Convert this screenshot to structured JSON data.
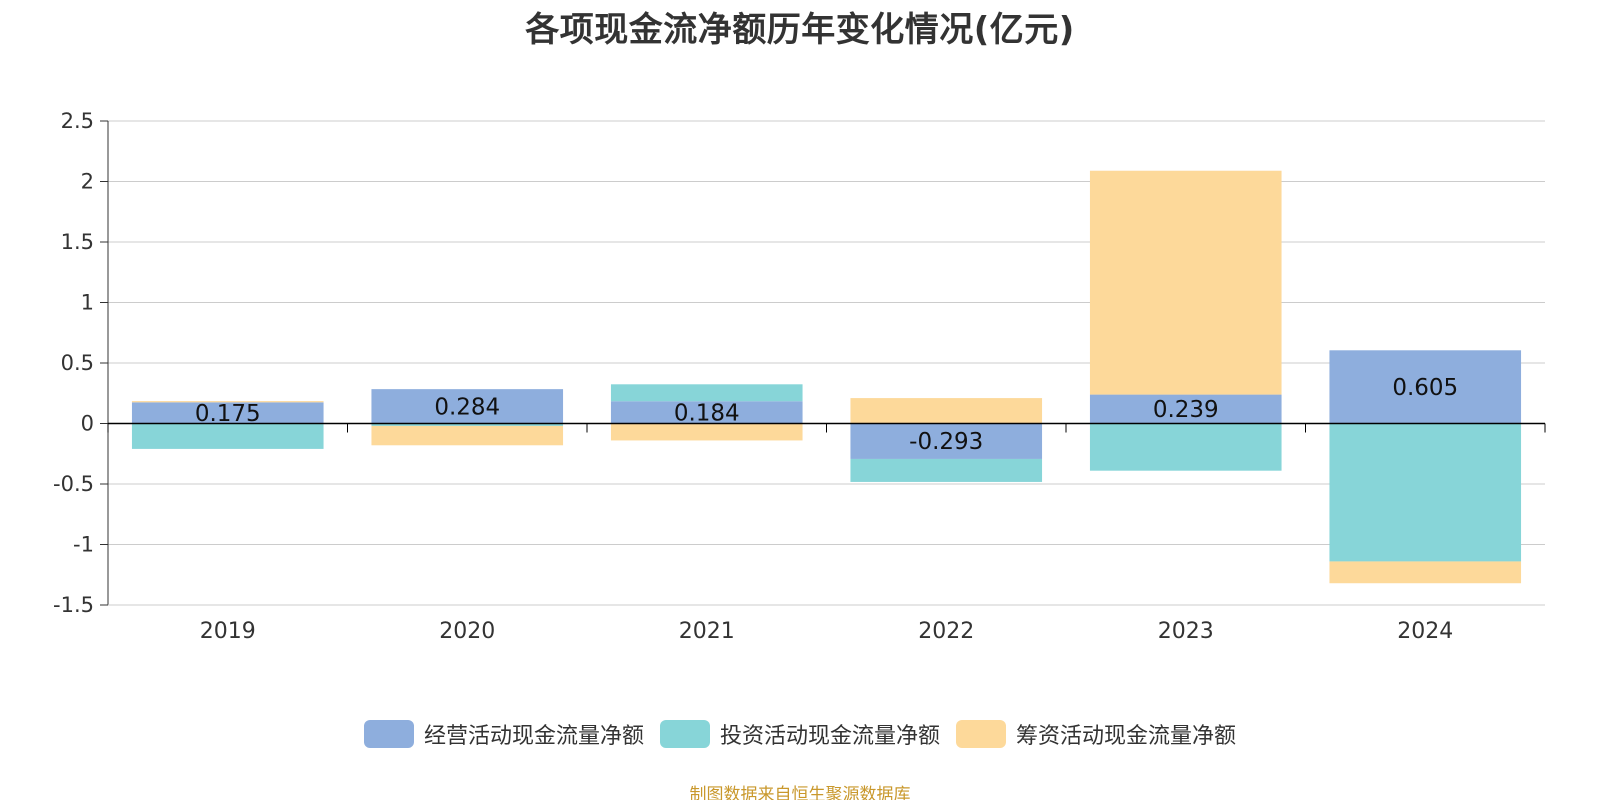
{
  "title": "各项现金流净额历年变化情况(亿元)",
  "source_note": "制图数据来自恒生聚源数据库",
  "colors": {
    "operating": "#8eaedd",
    "investing": "#87d5d8",
    "financing": "#fdd99a",
    "grid": "#cccccc",
    "axis": "#000000",
    "text": "#333333"
  },
  "chart_data": {
    "type": "bar",
    "stacked": true,
    "categories": [
      "2019",
      "2020",
      "2021",
      "2022",
      "2023",
      "2024"
    ],
    "ylim": [
      -1.5,
      2.5
    ],
    "yticks": [
      2.5,
      2,
      1.5,
      1,
      0.5,
      0,
      -0.5,
      -1,
      -1.5
    ],
    "ytick_labels": [
      "2.5",
      "2",
      "1.5",
      "1",
      "0.5",
      "0",
      "-0.5",
      "-1",
      "-1.5"
    ],
    "grid": true,
    "legend_position": "bottom",
    "series": [
      {
        "name": "经营活动现金流量净额",
        "color_key": "operating",
        "values": [
          0.175,
          0.284,
          0.184,
          -0.293,
          0.239,
          0.605
        ],
        "labels": [
          "0.175",
          "0.284",
          "0.184",
          "-0.293",
          "0.239",
          "0.605"
        ]
      },
      {
        "name": "投资活动现金流量净额",
        "color_key": "investing",
        "values": [
          -0.21,
          -0.02,
          0.14,
          -0.19,
          -0.39,
          -1.14
        ]
      },
      {
        "name": "筹资活动现金流量净额",
        "color_key": "financing",
        "values": [
          0.01,
          -0.16,
          -0.14,
          0.21,
          1.85,
          -0.18
        ]
      }
    ]
  }
}
